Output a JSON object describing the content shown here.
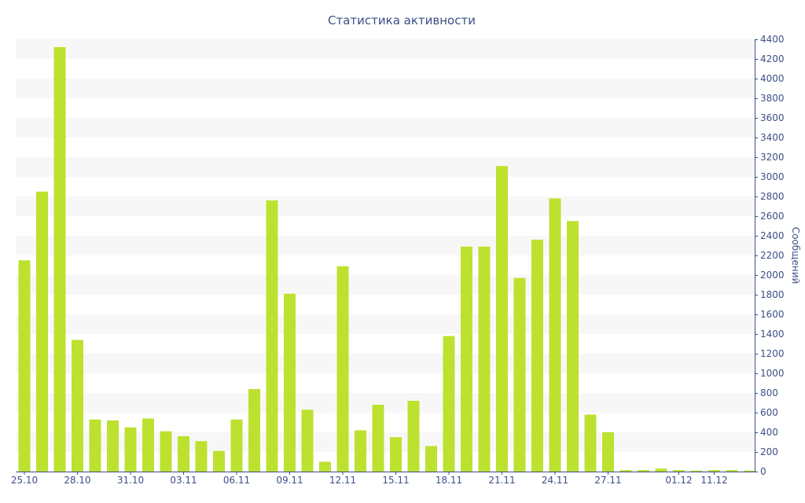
{
  "chart_data": {
    "type": "bar",
    "title": "Статистика активности",
    "ylabel": "Сообщений",
    "xlabel": "",
    "ylim": [
      0,
      4400
    ],
    "y_axis_position": "right",
    "y_ticks": [
      0,
      200,
      400,
      600,
      800,
      1000,
      1200,
      1400,
      1600,
      1800,
      2000,
      2200,
      2400,
      2600,
      2800,
      3000,
      3200,
      3400,
      3600,
      3800,
      4000,
      4200,
      4400
    ],
    "grid": "alternating horizontal bands",
    "bar_color": "#bde12f",
    "text_color": "#3d4f86",
    "categories": [
      "25.10",
      "26.10",
      "27.10",
      "28.10",
      "29.10",
      "30.10",
      "31.10",
      "01.11",
      "02.11",
      "03.11",
      "04.11",
      "05.11",
      "06.11",
      "07.11",
      "08.11",
      "09.11",
      "10.11",
      "11.11",
      "12.11",
      "13.11",
      "14.11",
      "15.11",
      "16.11",
      "17.11",
      "18.11",
      "19.11",
      "20.11",
      "21.11",
      "22.11",
      "23.11",
      "24.11",
      "25.11",
      "26.11",
      "27.11",
      "28.11",
      "29.11",
      "30.11",
      "01.12",
      "06.12",
      "11.12",
      "16.12",
      "21.12"
    ],
    "x_tick_labels": [
      "25.10",
      "28.10",
      "31.10",
      "03.11",
      "06.11",
      "09.11",
      "12.11",
      "15.11",
      "18.11",
      "21.11",
      "24.11",
      "27.11",
      "01.12",
      "11.12"
    ],
    "values": [
      2150,
      2850,
      4320,
      1340,
      530,
      520,
      450,
      540,
      410,
      360,
      310,
      210,
      530,
      840,
      2760,
      1810,
      630,
      100,
      2090,
      420,
      680,
      350,
      720,
      260,
      1380,
      2290,
      2290,
      3110,
      1970,
      2360,
      2780,
      2550,
      580,
      400,
      15,
      15,
      30,
      15,
      10,
      15,
      15,
      10
    ]
  }
}
